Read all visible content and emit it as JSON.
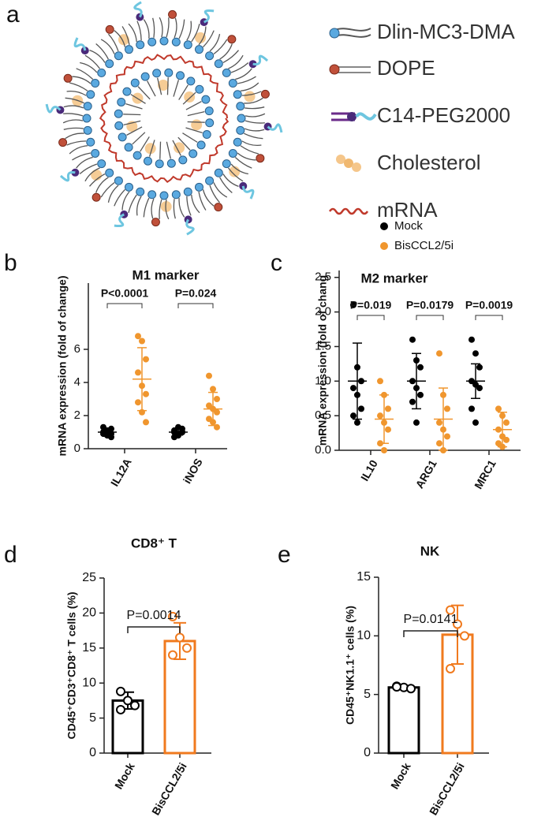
{
  "diagram": {
    "label": "a",
    "legend": [
      "Dlin-MC3-DMA",
      "DOPE",
      "C14-PEG2000",
      "Cholesterol",
      "mRNA"
    ]
  },
  "chart_data": [
    {
      "panel": "b",
      "type": "dot",
      "title": "M1 marker",
      "y_label": "mRNA expression (fold of change)",
      "categories": [
        "IL12A",
        "iNOS"
      ],
      "series": [
        {
          "color": "#000000",
          "values": [
            1.0,
            1.0
          ],
          "errors": [
            0.25,
            0.18
          ],
          "points": [
            [
              1.0,
              0.8,
              1.2,
              0.9,
              1.1,
              0.7,
              1.3,
              1.0,
              0.9
            ],
            [
              1.0,
              0.9,
              1.2,
              1.1,
              0.8,
              1.0,
              0.7,
              1.3,
              1.0
            ]
          ]
        },
        {
          "color": "#f0962e",
          "values": [
            4.2,
            2.4
          ],
          "errors": [
            1.9,
            1.0
          ],
          "points": [
            [
              6.8,
              6.5,
              5.4,
              4.6,
              3.8,
              3.3,
              2.8,
              2.2,
              1.6
            ],
            [
              4.4,
              3.6,
              3.0,
              2.6,
              2.4,
              2.2,
              1.8,
              1.6,
              1.3
            ]
          ]
        }
      ],
      "ylim": [
        0,
        10
      ],
      "yticks": [
        0,
        2,
        4,
        6
      ],
      "annotations": [
        "P<0.0001",
        "P=0.024"
      ]
    },
    {
      "panel": "c",
      "type": "dot",
      "title": "M2 marker",
      "y_label": "mRNA expression (fold of chang",
      "categories": [
        "IL10",
        "ARG1",
        "MRC1"
      ],
      "series": [
        {
          "name": "Mock",
          "color": "#000000",
          "values": [
            1.0,
            1.0,
            1.0
          ],
          "errors": [
            0.55,
            0.4,
            0.25
          ],
          "points": [
            [
              2.1,
              1.2,
              1.0,
              0.9,
              0.8,
              0.6,
              0.5,
              0.4
            ],
            [
              1.6,
              1.3,
              1.2,
              1.0,
              0.9,
              0.8,
              0.7,
              0.4
            ],
            [
              1.6,
              1.4,
              1.2,
              1.0,
              0.95,
              0.9,
              0.6,
              0.4
            ]
          ]
        },
        {
          "name": "BisCCL2/5i",
          "color": "#f0962e",
          "values": [
            0.45,
            0.45,
            0.3
          ],
          "errors": [
            0.35,
            0.45,
            0.25
          ],
          "points": [
            [
              1.0,
              0.8,
              0.6,
              0.5,
              0.4,
              0.3,
              0.1,
              0.0
            ],
            [
              1.4,
              0.8,
              0.6,
              0.4,
              0.3,
              0.2,
              0.1,
              0.0
            ],
            [
              0.6,
              0.5,
              0.4,
              0.3,
              0.2,
              0.15,
              0.1,
              0.05
            ]
          ]
        }
      ],
      "ylim": [
        0,
        2.6
      ],
      "yticks": [
        {
          "value": 0,
          "label": "0.0"
        },
        {
          "value": 0.5,
          "label": "0.5"
        },
        {
          "value": 1,
          "label": "1.0"
        },
        {
          "value": 1.5,
          "label": "1.5"
        },
        {
          "value": 2,
          "label": "2.0"
        },
        {
          "value": 2.5,
          "label": "2.5"
        }
      ],
      "annotations": [
        "P=0.019",
        "P=0.0179",
        "P=0.0019"
      ]
    },
    {
      "panel": "d",
      "type": "bar",
      "title": "CD8⁺ T",
      "y_label": "CD45⁺CD3⁺CD8⁺ T cells (%)",
      "categories": [
        "Mock",
        "BisCCL2/5i"
      ],
      "values": [
        7.5,
        16.0
      ],
      "errors": [
        1.2,
        2.6
      ],
      "colors": [
        "#000000",
        "#f07a1e"
      ],
      "points": [
        [
          8.8,
          7.5,
          6.8,
          6.2
        ],
        [
          19.5,
          16.5,
          15.0,
          14.0
        ]
      ],
      "ylim": [
        0,
        25
      ],
      "yticks": [
        0,
        5,
        10,
        15,
        20,
        25
      ],
      "annotations": [
        "P=0.0014"
      ]
    },
    {
      "panel": "e",
      "type": "bar",
      "title": "NK",
      "y_label": "CD45⁺NK1.1⁺ cells (%)",
      "categories": [
        "Mock",
        "BisCCL2/5i"
      ],
      "values": [
        5.6,
        10.1
      ],
      "errors": [
        0.15,
        2.5
      ],
      "colors": [
        "#000000",
        "#f07a1e"
      ],
      "points": [
        [
          5.7,
          5.6,
          5.5,
          5.65
        ],
        [
          12.2,
          11.0,
          10.0,
          7.2
        ]
      ],
      "ylim": [
        0,
        15
      ],
      "yticks": [
        0,
        5,
        10,
        15
      ],
      "annotations": [
        "P=0.0141"
      ]
    }
  ]
}
